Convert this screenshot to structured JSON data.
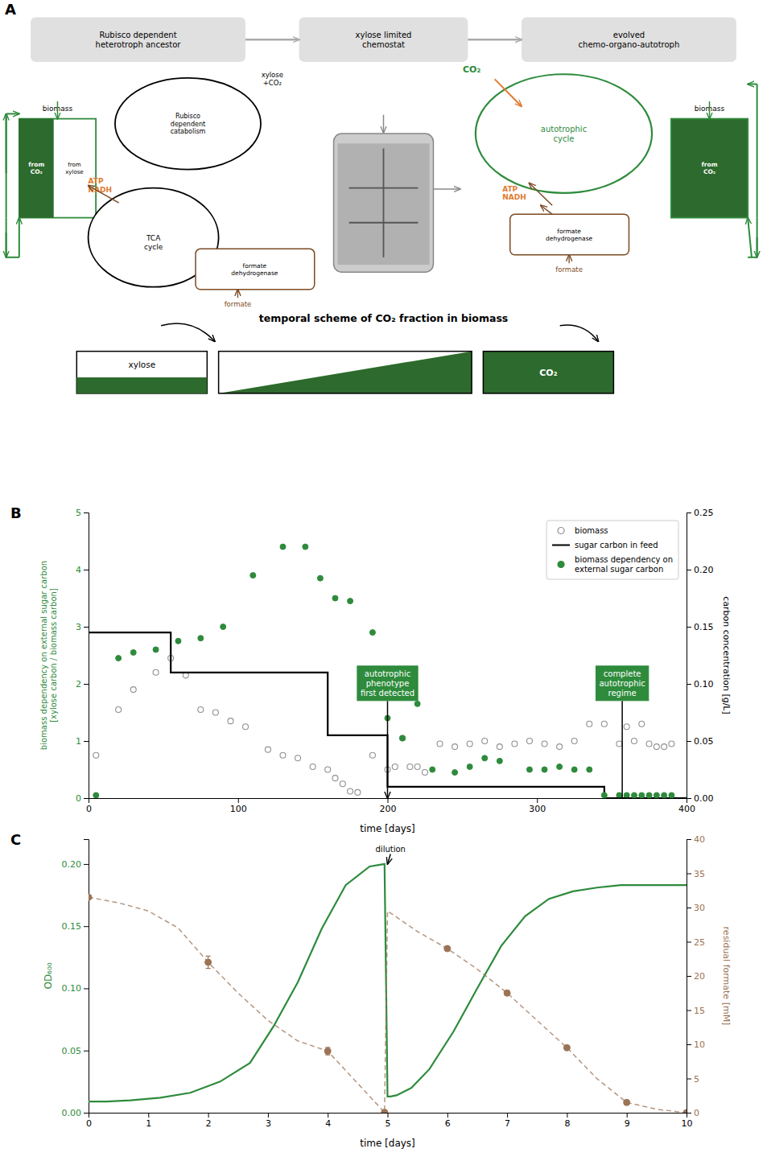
{
  "chart_data": [
    {
      "type": "diagram",
      "title": "A",
      "colors": [
        "#2e8b3c",
        "#2d6a2d",
        "#e07b30",
        "#7B4A23",
        "#e0e0e0"
      ],
      "annotations": [
        "Rubisco dependent\nheterotroph ancestor",
        "xylose limited\nchemostat",
        "evolved\nchemo-organo-autotroph",
        "from\nCO₂",
        "from\nxylose",
        "biomass",
        "Rubisco\ndependent\ncatabolism",
        "xylose\n+CO₂",
        "TCA\ncycle",
        "ATP\nNADH",
        "formate\ndehydrogenase",
        "formate",
        "autotrophic\ncycle",
        "CO₂",
        "ATP\nNADH",
        "formate\ndehydrogenase",
        "formate",
        "from\nCO₂",
        "biomass",
        "temporal scheme of CO₂ fraction in biomass",
        "xylose",
        "CO₂"
      ]
    },
    {
      "type": "scatter",
      "title": "B",
      "x_label": "time [days]",
      "y_label": "biomass dependency on external sugar carbon\n[xylose carbon / biomass carbon]",
      "y2_label": "carbon concentration [g/L]",
      "xlim": [
        0,
        400
      ],
      "xticks": [
        0,
        100,
        200,
        300,
        400
      ],
      "ylim": [
        0,
        5
      ],
      "yticks": [
        0,
        1,
        2,
        3,
        4,
        5
      ],
      "y2lim": [
        0,
        0.25
      ],
      "y2ticks": [
        {
          "value": 0,
          "label": "0.00"
        },
        {
          "value": 0.05,
          "label": "0.05"
        },
        {
          "value": 0.1,
          "label": "0.10"
        },
        {
          "value": 0.15,
          "label": "0.15"
        },
        {
          "value": 0.2,
          "label": "0.20"
        },
        {
          "value": 0.25,
          "label": "0.25"
        }
      ],
      "grid": false,
      "legend": "upper right",
      "series": [
        {
          "name": "biomass",
          "type": "scatter",
          "marker": "open_circle",
          "color": "#909090",
          "x": [
            5,
            20,
            30,
            45,
            55,
            65,
            75,
            85,
            95,
            105,
            120,
            130,
            140,
            150,
            160,
            165,
            170,
            175,
            180,
            190,
            200,
            205,
            210,
            215,
            220,
            225,
            235,
            245,
            255,
            265,
            275,
            285,
            295,
            305,
            315,
            325,
            335,
            345,
            355,
            360,
            365,
            370,
            375,
            380,
            385,
            390
          ],
          "values": [
            0.75,
            1.55,
            1.9,
            2.2,
            2.45,
            2.15,
            1.55,
            1.5,
            1.35,
            1.25,
            0.85,
            0.75,
            0.7,
            0.55,
            0.5,
            0.35,
            0.25,
            0.12,
            0.1,
            0.75,
            0.5,
            0.55,
            1.05,
            0.55,
            0.55,
            0.45,
            0.95,
            0.9,
            0.95,
            1.0,
            0.9,
            0.95,
            1.0,
            0.95,
            0.9,
            1.0,
            1.3,
            1.3,
            0.95,
            1.25,
            1.0,
            1.3,
            0.95,
            0.9,
            0.9,
            0.95
          ]
        },
        {
          "name": "sugar carbon in feed",
          "type": "line",
          "line_style": "solid",
          "color": "#000000",
          "axis": "y2",
          "x": [
            0,
            55,
            55,
            160,
            160,
            200,
            200,
            345,
            345,
            400
          ],
          "values": [
            0.145,
            0.145,
            0.11,
            0.11,
            0.055,
            0.055,
            0.01,
            0.01,
            0.0,
            0.0
          ]
        },
        {
          "name": "biomass dependency on\nexternal sugar carbon",
          "type": "scatter",
          "marker": "circle",
          "color": "#2e8b3c",
          "x": [
            5,
            20,
            30,
            45,
            60,
            75,
            90,
            110,
            130,
            145,
            155,
            165,
            175,
            190,
            200,
            210,
            220,
            230,
            245,
            255,
            265,
            275,
            295,
            305,
            315,
            325,
            335,
            345,
            355,
            360,
            365,
            370,
            375,
            380,
            385,
            390
          ],
          "values": [
            0.05,
            2.45,
            2.55,
            2.6,
            2.75,
            2.8,
            3.0,
            3.9,
            4.4,
            4.4,
            3.85,
            3.5,
            3.45,
            2.9,
            1.4,
            1.05,
            1.65,
            0.5,
            0.45,
            0.55,
            0.7,
            0.65,
            0.5,
            0.5,
            0.55,
            0.5,
            0.5,
            0.05,
            0.05,
            0.05,
            0.05,
            0.05,
            0.05,
            0.05,
            0.05,
            0.05
          ]
        }
      ],
      "annotations": [
        {
          "text": "autotrophic\nphenotype\nfirst detected",
          "x": 200,
          "y": 0.0,
          "text_x": 200,
          "text_y": 1.7,
          "color": "#2e8b3c",
          "marker": "arrow"
        },
        {
          "text": "complete\nautotrophic\nregime",
          "x": 357,
          "y": 0.0,
          "text_x": 357,
          "text_y": 1.7,
          "color": "#2e8b3c",
          "marker": "bracket"
        }
      ]
    },
    {
      "type": "line",
      "title": "C",
      "x_label": "time [days]",
      "y_label": "OD₆₀₀",
      "y2_label": "residual formate [mM]",
      "xlim": [
        0,
        10
      ],
      "xticks": [
        0,
        1,
        2,
        3,
        4,
        5,
        6,
        7,
        8,
        9,
        10
      ],
      "ylim": [
        0,
        0.22
      ],
      "yticks": [
        {
          "value": 0,
          "label": "0.00"
        },
        {
          "value": 0.05,
          "label": "0.05"
        },
        {
          "value": 0.1,
          "label": "0.10"
        },
        {
          "value": 0.15,
          "label": "0.15"
        },
        {
          "value": 0.2,
          "label": "0.20"
        }
      ],
      "y2lim": [
        0,
        40
      ],
      "y2ticks": [
        0,
        5,
        10,
        15,
        20,
        25,
        30,
        35,
        40
      ],
      "grid": false,
      "series": [
        {
          "type": "line",
          "line_style": "solid",
          "color": "#2e8b3c",
          "x": [
            0,
            0.3,
            0.7,
            1.2,
            1.7,
            2.2,
            2.7,
            3.1,
            3.5,
            3.9,
            4.3,
            4.7,
            4.95,
            5.0,
            5.05,
            5.15,
            5.4,
            5.7,
            6.1,
            6.5,
            6.9,
            7.3,
            7.7,
            8.1,
            8.5,
            8.9,
            9.3,
            9.7,
            10.0
          ],
          "values": [
            0.009,
            0.009,
            0.01,
            0.012,
            0.016,
            0.025,
            0.04,
            0.07,
            0.105,
            0.148,
            0.183,
            0.198,
            0.2,
            0.013,
            0.013,
            0.014,
            0.02,
            0.035,
            0.065,
            0.1,
            0.134,
            0.158,
            0.172,
            0.178,
            0.181,
            0.183,
            0.183,
            0.183,
            0.183
          ]
        },
        {
          "type": "line",
          "line_style": "dashed",
          "color": "#9B7355",
          "axis": "y2",
          "x": [
            0,
            0.5,
            1,
            1.5,
            2,
            2.5,
            3,
            3.5,
            4,
            4.95,
            5.0,
            5.5,
            6,
            6.5,
            7,
            7.5,
            8,
            8.5,
            9,
            9.5,
            10
          ],
          "values": [
            31.5,
            30.7,
            29.5,
            27.0,
            22.0,
            17.5,
            13.5,
            10.5,
            9.0,
            0.05,
            29.5,
            26.5,
            24.0,
            21.0,
            17.5,
            13.5,
            9.5,
            5.0,
            1.5,
            0.5,
            0.0
          ]
        },
        {
          "type": "scatter",
          "marker": "circle",
          "color": "#9B7355",
          "axis": "y2",
          "x": [
            0,
            2,
            4,
            4.95,
            6,
            7,
            8,
            9,
            10
          ],
          "values": [
            31.5,
            22.0,
            9.0,
            0.05,
            24.0,
            17.5,
            9.5,
            1.5,
            0.0
          ],
          "errors": [
            0.0,
            0.9,
            0.55,
            0.0,
            0.0,
            0.0,
            0.0,
            0.3,
            0.0
          ]
        }
      ],
      "annotations": [
        {
          "text": "dilution",
          "x": 5.0,
          "y": 0.2,
          "text_x": 5.05,
          "text_y": 0.208,
          "marker": "arrow"
        }
      ]
    }
  ]
}
